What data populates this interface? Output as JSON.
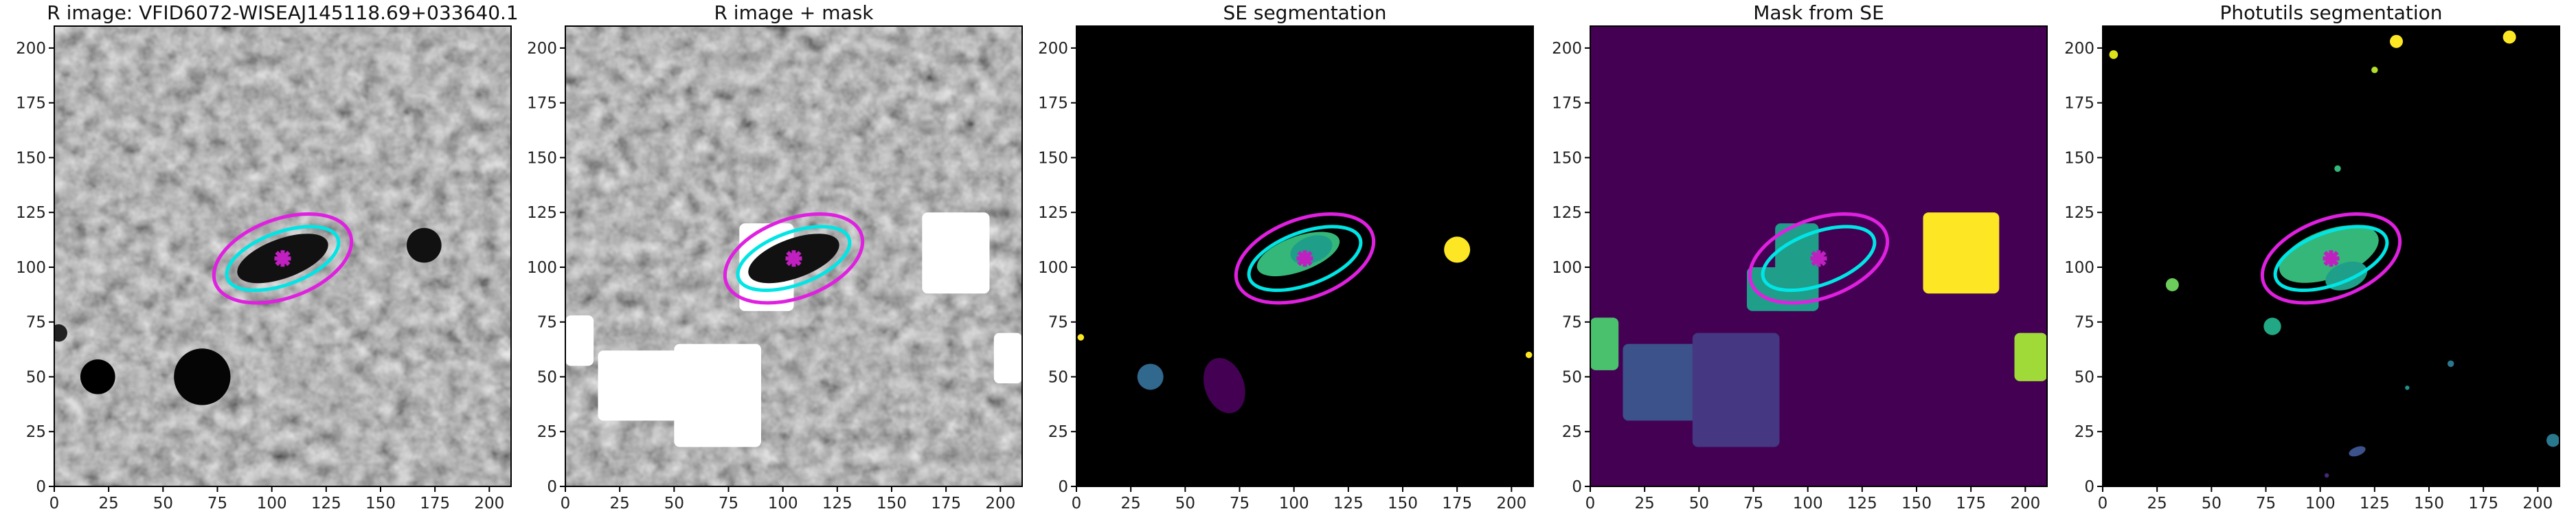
{
  "chart_data": [
    {
      "type": "image",
      "title": "R image: VFID6072-WISEAJ145118.69+033640.1",
      "xlim": [
        0,
        210
      ],
      "ylim": [
        0,
        210
      ],
      "xticks": [
        0,
        25,
        50,
        75,
        100,
        125,
        150,
        175,
        200
      ],
      "yticks": [
        0,
        25,
        50,
        75,
        100,
        125,
        150,
        175,
        200
      ],
      "ellipses": [
        {
          "x": 105,
          "y": 104,
          "a": 27,
          "b": 12,
          "angle": 20,
          "color": "#00e5e5"
        },
        {
          "x": 105,
          "y": 104,
          "a": 33,
          "b": 18,
          "angle": 20,
          "color": "#e020e0"
        }
      ],
      "marker": {
        "x": 105,
        "y": 104,
        "color": "#c020c0"
      }
    },
    {
      "type": "image",
      "title": "R image + mask",
      "xlim": [
        0,
        210
      ],
      "ylim": [
        0,
        210
      ],
      "xticks": [
        0,
        25,
        50,
        75,
        100,
        125,
        150,
        175,
        200
      ],
      "yticks": [
        0,
        25,
        50,
        75,
        100,
        125,
        150,
        175,
        200
      ],
      "ellipses": [
        {
          "x": 105,
          "y": 104,
          "a": 27,
          "b": 12,
          "angle": 20,
          "color": "#00e5e5"
        },
        {
          "x": 105,
          "y": 104,
          "a": 33,
          "b": 18,
          "angle": 20,
          "color": "#e020e0"
        }
      ],
      "marker": {
        "x": 105,
        "y": 104,
        "color": "#c020c0"
      }
    },
    {
      "type": "image",
      "title": "SE segmentation",
      "xlim": [
        0,
        210
      ],
      "ylim": [
        0,
        210
      ],
      "xticks": [
        0,
        25,
        50,
        75,
        100,
        125,
        150,
        175,
        200
      ],
      "yticks": [
        0,
        25,
        50,
        75,
        100,
        125,
        150,
        175,
        200
      ],
      "ellipses": [
        {
          "x": 105,
          "y": 104,
          "a": 27,
          "b": 12,
          "angle": 20,
          "color": "#00e5e5"
        },
        {
          "x": 105,
          "y": 104,
          "a": 33,
          "b": 18,
          "angle": 20,
          "color": "#e020e0"
        }
      ],
      "marker": {
        "x": 105,
        "y": 104,
        "color": "#c020c0"
      }
    },
    {
      "type": "image",
      "title": "Mask from SE",
      "xlim": [
        0,
        210
      ],
      "ylim": [
        0,
        210
      ],
      "xticks": [
        0,
        25,
        50,
        75,
        100,
        125,
        150,
        175,
        200
      ],
      "yticks": [
        0,
        25,
        50,
        75,
        100,
        125,
        150,
        175,
        200
      ],
      "ellipses": [
        {
          "x": 105,
          "y": 104,
          "a": 27,
          "b": 12,
          "angle": 20,
          "color": "#00e5e5"
        },
        {
          "x": 105,
          "y": 104,
          "a": 33,
          "b": 18,
          "angle": 20,
          "color": "#e020e0"
        }
      ],
      "marker": {
        "x": 105,
        "y": 104,
        "color": "#c020c0"
      }
    },
    {
      "type": "image",
      "title": "Photutils segmentation",
      "xlim": [
        0,
        210
      ],
      "ylim": [
        0,
        210
      ],
      "xticks": [
        0,
        25,
        50,
        75,
        100,
        125,
        150,
        175,
        200
      ],
      "yticks": [
        0,
        25,
        50,
        75,
        100,
        125,
        150,
        175,
        200
      ],
      "ellipses": [
        {
          "x": 105,
          "y": 104,
          "a": 27,
          "b": 12,
          "angle": 20,
          "color": "#00e5e5"
        },
        {
          "x": 105,
          "y": 104,
          "a": 33,
          "b": 18,
          "angle": 20,
          "color": "#e020e0"
        }
      ],
      "marker": {
        "x": 105,
        "y": 104,
        "color": "#c020c0"
      }
    }
  ]
}
